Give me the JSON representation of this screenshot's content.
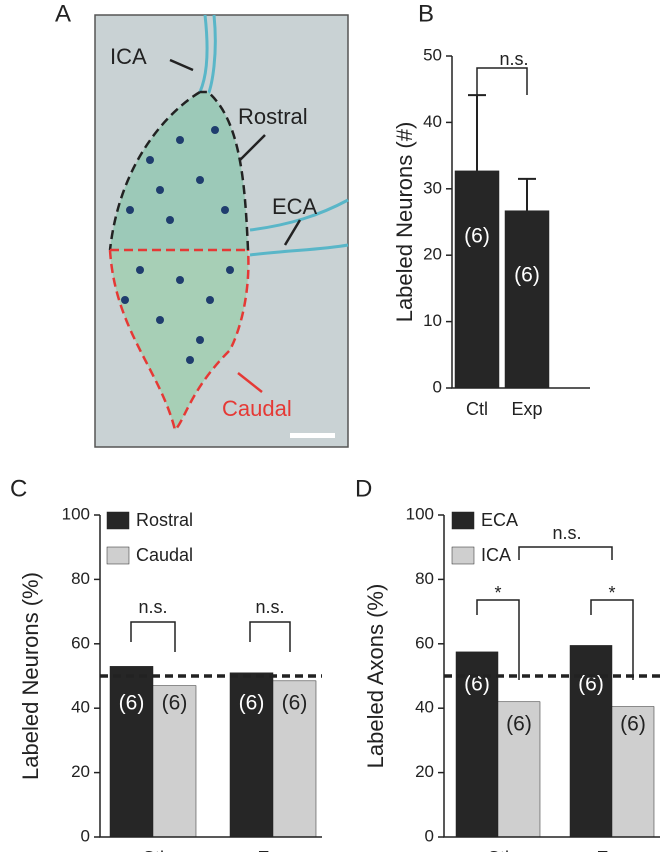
{
  "image_panel": {
    "panel_label": "A",
    "labels": [
      "ICA",
      "Rostral",
      "ECA",
      "Caudal"
    ]
  },
  "chart_data": [
    {
      "type": "bar",
      "panel_label": "B",
      "ylabel": "Labeled Neurons (#)",
      "categories": [
        "Ctl",
        "Exp"
      ],
      "series": [
        {
          "color": "#262626",
          "values": [
            32.7,
            26.7
          ],
          "errors": [
            11.4,
            4.8
          ],
          "n_labels": [
            "(6)",
            "(6)"
          ]
        }
      ],
      "ylim": [
        0,
        50
      ],
      "yticks": [
        0,
        10,
        20,
        30,
        40,
        50
      ],
      "annotations": [
        "n.s."
      ]
    },
    {
      "type": "bar",
      "panel_label": "C",
      "ylabel": "Labeled Neurons (%)",
      "categories": [
        "Ctl",
        "Exp"
      ],
      "series": [
        {
          "name": "Rostral",
          "color": "#262626",
          "values": [
            53,
            51
          ],
          "n_labels": [
            "(6)",
            "(6)"
          ]
        },
        {
          "name": "Caudal",
          "color": "#cfcfcf",
          "values": [
            47,
            48.5
          ],
          "n_labels": [
            "(6)",
            "(6)"
          ]
        }
      ],
      "ylim": [
        0,
        100
      ],
      "yticks": [
        0,
        20,
        40,
        60,
        80,
        100
      ],
      "reference_line": 50,
      "annotations": [
        "n.s.",
        "n.s."
      ]
    },
    {
      "type": "bar",
      "panel_label": "D",
      "ylabel": "Labeled Axons (%)",
      "categories": [
        "Ctl",
        "Exp"
      ],
      "series": [
        {
          "name": "ECA",
          "color": "#262626",
          "values": [
            57.5,
            59.5
          ],
          "n_labels": [
            "(6)",
            "(6)"
          ]
        },
        {
          "name": "ICA",
          "color": "#cfcfcf",
          "values": [
            42,
            40.5
          ],
          "n_labels": [
            "(6)",
            "(6)"
          ]
        }
      ],
      "ylim": [
        0,
        100
      ],
      "yticks": [
        0,
        20,
        40,
        60,
        80,
        100
      ],
      "reference_line": 50,
      "annotations": [
        "*",
        "*",
        "n.s."
      ]
    }
  ]
}
